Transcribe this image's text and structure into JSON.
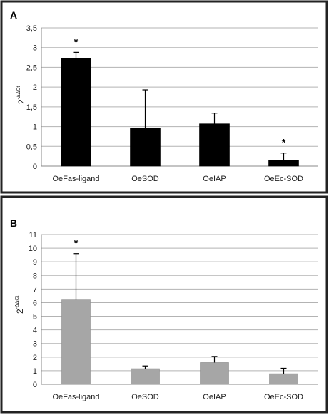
{
  "chart_data": [
    {
      "type": "bar",
      "panel_label": "A",
      "ylabel_base": "2",
      "ylabel_exp": "-ΔΔCt",
      "categories": [
        "OeFas-ligand",
        "OeSOD",
        "OeIAP",
        "OeEc-SOD"
      ],
      "values": [
        2.72,
        0.96,
        1.07,
        0.15
      ],
      "errors": [
        0.16,
        0.97,
        0.27,
        0.18
      ],
      "significant": [
        true,
        false,
        false,
        true
      ],
      "significance_mark": "*",
      "ylim": [
        0,
        3.5
      ],
      "yticks": [
        0,
        0.5,
        1,
        1.5,
        2,
        2.5,
        3,
        3.5
      ],
      "ytick_labels": [
        "0",
        "0,5",
        "1",
        "1,5",
        "2",
        "2,5",
        "3",
        "3,5"
      ],
      "bar_color": "#000000",
      "grid": true
    },
    {
      "type": "bar",
      "panel_label": "B",
      "ylabel_base": "2",
      "ylabel_exp": "-ΔΔCt",
      "categories": [
        "OeFas-ligand",
        "OeSOD",
        "OeIAP",
        "OeEc-SOD"
      ],
      "values": [
        6.2,
        1.15,
        1.6,
        0.78
      ],
      "errors": [
        3.4,
        0.2,
        0.45,
        0.4
      ],
      "significant": [
        true,
        false,
        false,
        false
      ],
      "significance_mark": "*",
      "ylim": [
        0,
        11
      ],
      "yticks": [
        0,
        1,
        2,
        3,
        4,
        5,
        6,
        7,
        8,
        9,
        10,
        11
      ],
      "ytick_labels": [
        "0",
        "1",
        "2",
        "3",
        "4",
        "5",
        "6",
        "7",
        "8",
        "9",
        "10",
        "11"
      ],
      "bar_color": "#a6a6a6",
      "grid": true
    }
  ]
}
